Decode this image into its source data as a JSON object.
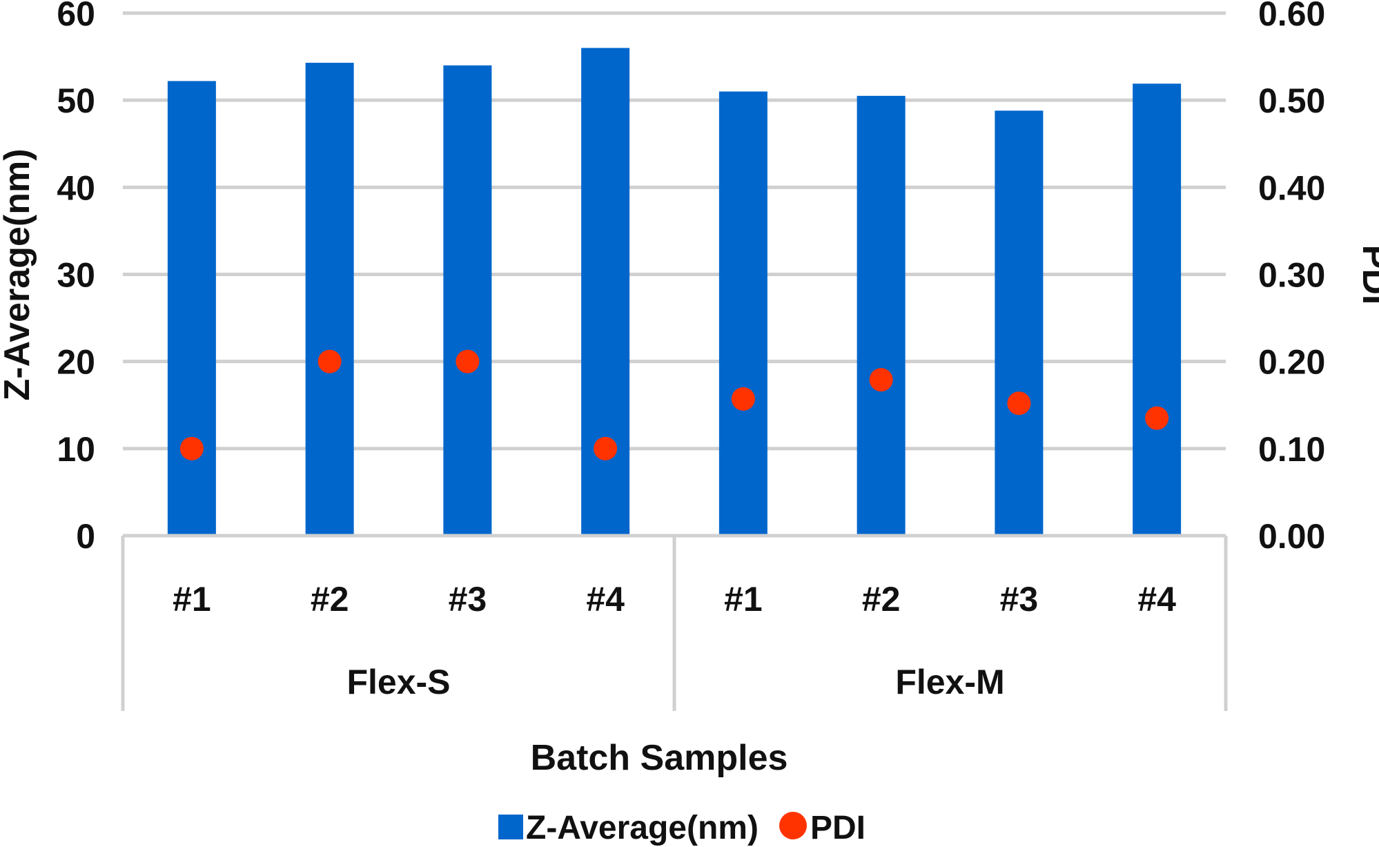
{
  "chart_data": {
    "type": "bar",
    "xlabel": "Batch Samples",
    "ylabel": "Z-Average(nm)",
    "y2label": "PDI",
    "groups": [
      {
        "name": "Flex-S",
        "categories": [
          "#1",
          "#2",
          "#3",
          "#4"
        ]
      },
      {
        "name": "Flex-M",
        "categories": [
          "#1",
          "#2",
          "#3",
          "#4"
        ]
      }
    ],
    "ylim": [
      0,
      60
    ],
    "yticks": [
      "0",
      "10",
      "20",
      "30",
      "40",
      "50",
      "60"
    ],
    "y2lim": [
      0,
      0.6
    ],
    "y2ticks": [
      "0.00",
      "0.10",
      "0.20",
      "0.30",
      "0.40",
      "0.50",
      "0.60"
    ],
    "grid": true,
    "legend_position": "bottom",
    "series": [
      {
        "name": "Z-Average(nm)",
        "kind": "bar",
        "axis": "left",
        "color": "#0066cc",
        "values": [
          52.2,
          54.3,
          54.0,
          56.0,
          51.0,
          50.5,
          48.8,
          51.9
        ]
      },
      {
        "name": "PDI",
        "kind": "scatter",
        "axis": "right",
        "color": "#ff3300",
        "values": [
          0.1,
          0.2,
          0.2,
          0.1,
          0.157,
          0.179,
          0.152,
          0.135
        ]
      }
    ]
  }
}
